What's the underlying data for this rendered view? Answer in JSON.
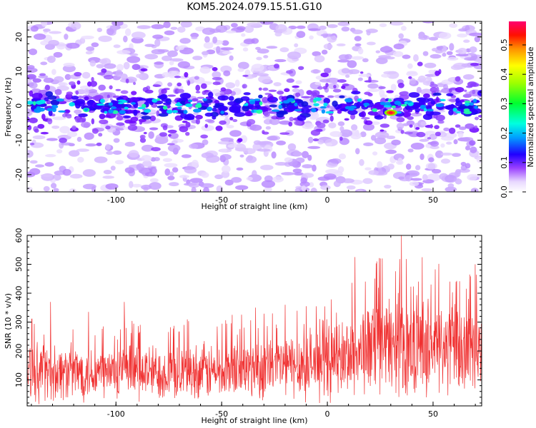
{
  "title": "KOM5.2024.079.15.51.G10",
  "colors": {
    "snr_line": "#f03030",
    "axis": "#000000",
    "spectrum_low": "#e6d6ff",
    "spectrum_mid": "#5a00ff"
  },
  "chart_data": [
    {
      "type": "heatmap",
      "name": "spectrogram",
      "xlabel": "Height of straight line (km)",
      "ylabel": "Frequency (Hz)",
      "xlim": [
        -142,
        73
      ],
      "ylim": [
        -25,
        24.5
      ],
      "xticks": [
        -100,
        -50,
        0,
        50
      ],
      "yticks": [
        -20,
        -10,
        0,
        10,
        20
      ],
      "xticklabels": [
        "-100",
        "-50",
        "0",
        "50"
      ],
      "yticklabels": [
        "-20",
        "-10",
        "0",
        "10",
        "20"
      ],
      "colorbar": {
        "label": "Normalized spectral amplitude",
        "range": [
          0.0,
          0.58
        ],
        "ticks": [
          0.0,
          0.1,
          0.2,
          0.3,
          0.4,
          0.5
        ],
        "ticklabels": [
          "0.0",
          "0.1",
          "0.2",
          "0.3",
          "0.4",
          "0.5"
        ],
        "colorscale": [
          "#ffffff",
          "#d8b8ff",
          "#8800ff",
          "#0000ff",
          "#00e0ff",
          "#00ff80",
          "#80ff00",
          "#ffff00",
          "#ff8000",
          "#ff0000",
          "#ff0060"
        ]
      },
      "band_center_hz": 0,
      "band_halfwidth_hz": 4,
      "peak": {
        "x": 30,
        "y": -2,
        "value": 0.58
      }
    },
    {
      "type": "line",
      "name": "snr",
      "xlabel": "Height of straight line (km)",
      "ylabel": "SNR (10 * v/v)",
      "xlim": [
        -142,
        73
      ],
      "ylim": [
        10,
        600
      ],
      "xticks": [
        -100,
        -50,
        0,
        50
      ],
      "yticks": [
        100,
        200,
        300,
        400,
        500,
        600
      ],
      "xticklabels": [
        "-100",
        "-50",
        "0",
        "50"
      ],
      "yticklabels": [
        "100",
        "200",
        "300",
        "400",
        "500",
        "600"
      ],
      "trend": [
        {
          "x": -142,
          "y": 130
        },
        {
          "x": -100,
          "y": 125
        },
        {
          "x": -50,
          "y": 130
        },
        {
          "x": 0,
          "y": 160
        },
        {
          "x": 25,
          "y": 220
        },
        {
          "x": 50,
          "y": 220
        },
        {
          "x": 73,
          "y": 190
        }
      ],
      "peaks": [
        {
          "x": -142,
          "y": 330
        },
        {
          "x": -131,
          "y": 370
        },
        {
          "x": -113,
          "y": 335
        },
        {
          "x": -96,
          "y": 370
        },
        {
          "x": -45,
          "y": 325
        },
        {
          "x": -34,
          "y": 350
        },
        {
          "x": -20,
          "y": 360
        },
        {
          "x": -10,
          "y": 355
        },
        {
          "x": 13,
          "y": 525
        },
        {
          "x": 18,
          "y": 440
        },
        {
          "x": 26,
          "y": 520
        },
        {
          "x": 35,
          "y": 600
        },
        {
          "x": 43,
          "y": 440
        },
        {
          "x": 49,
          "y": 430
        },
        {
          "x": 58,
          "y": 440
        },
        {
          "x": 70,
          "y": 500
        }
      ]
    }
  ]
}
